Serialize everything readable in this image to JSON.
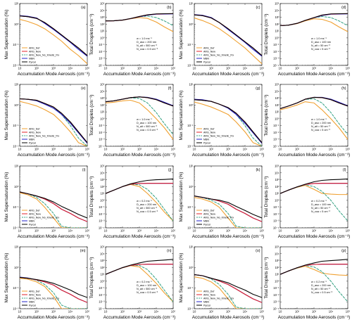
{
  "chart_data": {
    "type": "line",
    "layout": "4x4 grid of log-log panels",
    "x_axis": {
      "label": "Accumulation Mode Aerosols",
      "unit": "(cm⁻³)",
      "scale": "log",
      "xlim": [
        10,
        100000
      ],
      "ticks": [
        "10",
        "10²",
        "10³",
        "10⁴",
        "10⁵"
      ]
    },
    "y_smax": {
      "label": "Max Supersaturation",
      "unit": "(%)",
      "scale": "log",
      "ylim": [
        0.01,
        10
      ],
      "ticks": [
        "10⁻²",
        "10⁻¹",
        "10⁰",
        "10¹"
      ]
    },
    "y_nd": {
      "label": "Total Droplets",
      "unit": "(cm⁻³)",
      "scale": "log",
      "ylim": [
        0.0001,
        100000
      ],
      "ticks": [
        "10⁻⁴",
        "10⁻³",
        "10⁻²",
        "10⁻¹",
        "10⁰",
        "10¹",
        "10²",
        "10³",
        "10⁴",
        "10⁵"
      ]
    },
    "legend": [
      {
        "name": "ARG_Def",
        "color": "#f0a030",
        "dash": "solid"
      },
      {
        "name": "ARG_New",
        "color": "#e0202a",
        "dash": "solid"
      },
      {
        "name": "ARG_New_No_Kinetic_Fix",
        "color": "#30a080",
        "dash": "dashed"
      },
      {
        "name": "MBN",
        "color": "#2020c8",
        "dash": "solid"
      },
      {
        "name": "Pyrcel",
        "color": "#000000",
        "dash": "solid"
      }
    ],
    "x": [
      10,
      30,
      100,
      300,
      1000,
      3000,
      10000,
      30000,
      100000
    ],
    "panels": [
      {
        "label": "(a)",
        "kind": "smax",
        "series": {
          "ARG_Def": [
            1.7,
            1.35,
            0.95,
            0.6,
            0.3,
            0.15,
            0.06,
            0.03,
            0.012
          ],
          "ARG_New": [
            2.5,
            2.3,
            1.9,
            1.2,
            0.6,
            0.3,
            0.14,
            0.07,
            0.03
          ],
          "ARG_New_No_Kinetic_Fix": [
            2.5,
            2.3,
            1.9,
            1.2,
            0.6,
            0.3,
            0.14,
            0.07,
            0.03
          ],
          "MBN": [
            2.6,
            2.4,
            2.0,
            1.1,
            0.55,
            0.28,
            0.13,
            0.06,
            0.028
          ],
          "Pyrcel": [
            2.5,
            2.3,
            1.9,
            1.2,
            0.6,
            0.3,
            0.14,
            0.07,
            0.03
          ]
        }
      },
      {
        "label": "(b)",
        "kind": "nd",
        "annotation": [
          "w = 1.0 ms⁻¹",
          "D_aso = 200 nm",
          "N_ait = 500 cm⁻³",
          "N_coa = 0.5 cm⁻³"
        ],
        "series": {
          "ARG_Def": [
            300,
            310,
            380,
            600,
            900,
            700,
            200,
            40,
            8
          ],
          "ARG_New": [
            300,
            310,
            390,
            650,
            1300,
            2200,
            3000,
            3200,
            3300
          ],
          "ARG_New_No_Kinetic_Fix": [
            300,
            310,
            390,
            650,
            1200,
            1500,
            900,
            300,
            60
          ],
          "MBN": [
            300,
            310,
            390,
            640,
            1200,
            2000,
            2800,
            3000,
            3100
          ],
          "Pyrcel": [
            300,
            310,
            390,
            650,
            1300,
            2300,
            3100,
            3300,
            3400
          ]
        }
      },
      {
        "label": "(c)",
        "kind": "smax",
        "series": {
          "ARG_Def": [
            2.0,
            1.5,
            1.0,
            0.6,
            0.3,
            0.15,
            0.07,
            0.03,
            0.012
          ],
          "ARG_New": [
            2.8,
            2.6,
            2.0,
            1.2,
            0.6,
            0.3,
            0.14,
            0.07,
            0.03
          ],
          "ARG_New_No_Kinetic_Fix": [
            2.8,
            2.6,
            2.0,
            1.2,
            0.6,
            0.3,
            0.14,
            0.07,
            0.03
          ],
          "MBN": [
            2.9,
            2.7,
            2.1,
            1.2,
            0.55,
            0.28,
            0.13,
            0.06,
            0.028
          ],
          "Pyrcel": [
            2.8,
            2.6,
            2.0,
            1.2,
            0.6,
            0.3,
            0.14,
            0.07,
            0.03
          ]
        }
      },
      {
        "label": "(d)",
        "kind": "nd",
        "annotation": [
          "w = 1.0 ms⁻¹",
          "D_aso = 100 nm",
          "N_ait = 50 cm⁻³",
          "N_coa = 5 cm⁻³"
        ],
        "series": {
          "ARG_Def": [
            60,
            70,
            120,
            300,
            600,
            500,
            200,
            40,
            8
          ],
          "ARG_New": [
            60,
            70,
            130,
            350,
            900,
            2000,
            3000,
            3200,
            3300
          ],
          "ARG_New_No_Kinetic_Fix": [
            60,
            70,
            130,
            350,
            850,
            1300,
            900,
            300,
            60
          ],
          "MBN": [
            60,
            70,
            130,
            340,
            850,
            1800,
            2800,
            3000,
            3100
          ],
          "Pyrcel": [
            60,
            70,
            130,
            350,
            900,
            2100,
            3100,
            3300,
            3400
          ]
        }
      },
      {
        "label": "(e)",
        "kind": "smax",
        "series": {
          "ARG_Def": [
            1.5,
            1.2,
            0.9,
            0.6,
            0.35,
            0.15,
            0.05,
            0.015,
            0.003
          ],
          "ARG_New": [
            2.0,
            1.9,
            1.7,
            1.2,
            0.8,
            0.4,
            0.15,
            0.05,
            0.015
          ],
          "ARG_New_No_Kinetic_Fix": [
            2.0,
            1.9,
            1.7,
            1.2,
            0.8,
            0.35,
            0.1,
            0.025,
            0.006
          ],
          "MBN": [
            2.0,
            1.9,
            1.6,
            1.1,
            0.7,
            0.35,
            0.13,
            0.045,
            0.014
          ],
          "Pyrcel": [
            2.0,
            1.9,
            1.7,
            1.2,
            0.8,
            0.4,
            0.15,
            0.05,
            0.015
          ]
        }
      },
      {
        "label": "(f)",
        "kind": "nd",
        "annotation": [
          "w = 1.0 ms⁻¹",
          "D_aso = 100 nm",
          "N_ait = 500 cm⁻³",
          "N_coa = 0.5 cm⁻³"
        ],
        "series": {
          "ARG_Def": [
            200,
            250,
            400,
            500,
            200,
            20,
            1,
            0.05,
            0.001
          ],
          "ARG_New": [
            300,
            400,
            700,
            1200,
            1500,
            1200,
            600,
            200,
            70
          ],
          "ARG_New_No_Kinetic_Fix": [
            300,
            400,
            700,
            1100,
            900,
            200,
            8,
            0.2,
            0.005
          ],
          "MBN": [
            300,
            400,
            700,
            1200,
            1500,
            1300,
            700,
            250,
            80
          ],
          "Pyrcel": [
            300,
            400,
            700,
            1200,
            1500,
            1200,
            600,
            200,
            70
          ]
        }
      },
      {
        "label": "(g)",
        "kind": "smax",
        "series": {
          "ARG_Def": [
            1.4,
            1.1,
            0.8,
            0.55,
            0.35,
            0.15,
            0.05,
            0.015,
            0.003
          ],
          "ARG_New": [
            1.8,
            1.7,
            1.5,
            1.1,
            0.75,
            0.4,
            0.15,
            0.05,
            0.015
          ],
          "ARG_New_No_Kinetic_Fix": [
            1.8,
            1.7,
            1.5,
            1.1,
            0.75,
            0.35,
            0.1,
            0.025,
            0.006
          ],
          "MBN": [
            1.9,
            1.8,
            1.5,
            1.1,
            0.7,
            0.35,
            0.13,
            0.045,
            0.014
          ],
          "Pyrcel": [
            1.8,
            1.7,
            1.5,
            1.1,
            0.75,
            0.4,
            0.15,
            0.05,
            0.015
          ]
        }
      },
      {
        "label": "(h)",
        "kind": "nd",
        "annotation": [
          "w = 1.0 ms⁻¹",
          "D_aso = 200 nm",
          "N_ait = 50 cm⁻³",
          "N_coa = 5 cm⁻³"
        ],
        "series": {
          "ARG_Def": [
            20,
            40,
            100,
            300,
            200,
            20,
            1,
            0.05,
            0.001
          ],
          "ARG_New": [
            30,
            70,
            200,
            700,
            1300,
            1200,
            600,
            200,
            70
          ],
          "ARG_New_No_Kinetic_Fix": [
            30,
            70,
            200,
            650,
            800,
            200,
            8,
            0.2,
            0.005
          ],
          "MBN": [
            30,
            70,
            200,
            700,
            1300,
            1300,
            700,
            250,
            80
          ],
          "Pyrcel": [
            30,
            70,
            200,
            700,
            1300,
            1200,
            600,
            200,
            70
          ]
        }
      },
      {
        "label": "(i)",
        "kind": "smax",
        "series": {
          "ARG_Def": [
            0.5,
            0.4,
            0.25,
            0.1,
            0.03,
            0.008,
            0.002,
            0.0008,
            0.0003
          ],
          "ARG_New": [
            0.55,
            0.45,
            0.35,
            0.25,
            0.15,
            0.08,
            0.05,
            0.03,
            0.02
          ],
          "ARG_New_No_Kinetic_Fix": [
            0.55,
            0.45,
            0.3,
            0.15,
            0.05,
            0.012,
            0.003,
            0.001,
            0.0004
          ],
          "MBN": [
            0.55,
            0.45,
            0.35,
            0.25,
            0.15,
            0.08,
            0.05,
            0.03,
            0.02
          ],
          "Pyrcel": [
            0.55,
            0.45,
            0.35,
            0.27,
            0.18,
            0.11,
            0.07,
            0.045,
            0.03
          ]
        }
      },
      {
        "label": "(j)",
        "kind": "nd",
        "annotation": [
          "w = 0.2 ms⁻¹",
          "D_aso = 200 nm",
          "N_ait = 500 cm⁻³",
          "N_coa = 0.5 cm⁻³"
        ],
        "series": {
          "ARG_Def": [
            10,
            30,
            100,
            200,
            100,
            10,
            0.5,
            0.02,
            0.001
          ],
          "ARG_New": [
            10,
            30,
            100,
            230,
            280,
            300,
            300,
            300,
            300
          ],
          "ARG_New_No_Kinetic_Fix": [
            10,
            30,
            100,
            220,
            180,
            40,
            2,
            0.05,
            0.001
          ],
          "MBN": [
            10,
            30,
            100,
            230,
            280,
            300,
            300,
            300,
            300
          ],
          "Pyrcel": [
            10,
            30,
            100,
            250,
            500,
            800,
            1000,
            1100,
            1300
          ]
        }
      },
      {
        "label": "(k)",
        "kind": "smax",
        "series": {
          "ARG_Def": [
            0.3,
            0.25,
            0.18,
            0.1,
            0.03,
            0.008,
            0.002,
            0.0008,
            0.0003
          ],
          "ARG_New": [
            0.35,
            0.3,
            0.25,
            0.2,
            0.14,
            0.08,
            0.05,
            0.03,
            0.02
          ],
          "ARG_New_No_Kinetic_Fix": [
            0.35,
            0.3,
            0.22,
            0.14,
            0.05,
            0.012,
            0.003,
            0.001,
            0.0004
          ],
          "MBN": [
            0.35,
            0.3,
            0.25,
            0.2,
            0.14,
            0.08,
            0.05,
            0.03,
            0.02
          ],
          "Pyrcel": [
            0.35,
            0.3,
            0.25,
            0.22,
            0.17,
            0.11,
            0.07,
            0.045,
            0.03
          ]
        }
      },
      {
        "label": "(l)",
        "kind": "nd",
        "annotation": [
          "w = 0.2 ms⁻¹",
          "D_aso = 100 nm",
          "N_ait = 50 cm⁻³",
          "N_coa = 5 cm⁻³"
        ],
        "series": {
          "ARG_Def": [
            10,
            30,
            80,
            150,
            40,
            10,
            8,
            7,
            7
          ],
          "ARG_New": [
            10,
            30,
            90,
            200,
            280,
            300,
            300,
            300,
            300
          ],
          "ARG_New_No_Kinetic_Fix": [
            10,
            30,
            85,
            180,
            100,
            20,
            1,
            0.03,
            0.001
          ],
          "MBN": [
            10,
            30,
            90,
            200,
            280,
            300,
            300,
            300,
            300
          ],
          "Pyrcel": [
            10,
            30,
            90,
            220,
            500,
            800,
            1000,
            1100,
            1300
          ]
        }
      },
      {
        "label": "(m)",
        "kind": "smax",
        "series": {
          "ARG_Def": [
            0.3,
            0.27,
            0.2,
            0.12,
            0.04,
            0.01,
            0.002,
            0.0008,
            0.0003
          ],
          "ARG_New": [
            0.33,
            0.3,
            0.25,
            0.2,
            0.14,
            0.08,
            0.05,
            0.03,
            0.02
          ],
          "ARG_New_No_Kinetic_Fix": [
            0.33,
            0.3,
            0.24,
            0.15,
            0.06,
            0.015,
            0.004,
            0.001,
            0.0004
          ],
          "MBN": [
            0.34,
            0.31,
            0.25,
            0.2,
            0.14,
            0.08,
            0.05,
            0.03,
            0.02
          ],
          "Pyrcel": [
            0.33,
            0.3,
            0.26,
            0.22,
            0.17,
            0.12,
            0.08,
            0.05,
            0.035
          ]
        }
      },
      {
        "label": "(n)",
        "kind": "nd",
        "annotation": [
          "w = 0.2 ms⁻¹",
          "D_aso = 100 nm",
          "N_ait = 500 cm⁻³",
          "N_coa = 0.5 cm⁻³"
        ],
        "series": {
          "ARG_Def": [
            10,
            30,
            90,
            180,
            120,
            10,
            0.5,
            0.02,
            0.001
          ],
          "ARG_New": [
            10,
            30,
            95,
            200,
            270,
            300,
            300,
            300,
            300
          ],
          "ARG_New_No_Kinetic_Fix": [
            10,
            30,
            95,
            200,
            200,
            50,
            2,
            0.05,
            0.001
          ],
          "MBN": [
            10,
            30,
            95,
            200,
            270,
            300,
            300,
            300,
            300
          ],
          "Pyrcel": [
            10,
            30,
            95,
            220,
            450,
            800,
            1000,
            1200,
            1500
          ]
        }
      },
      {
        "label": "(o)",
        "kind": "smax",
        "series": {
          "ARG_Def": [
            0.35,
            0.3,
            0.2,
            0.1,
            0.03,
            0.008,
            0.002,
            0.0008,
            0.0003
          ],
          "ARG_New": [
            0.45,
            0.4,
            0.3,
            0.22,
            0.15,
            0.09,
            0.05,
            0.03,
            0.02
          ],
          "ARG_New_No_Kinetic_Fix": [
            0.45,
            0.4,
            0.28,
            0.15,
            0.05,
            0.012,
            0.003,
            0.001,
            0.0004
          ],
          "MBN": [
            0.45,
            0.4,
            0.3,
            0.22,
            0.15,
            0.09,
            0.05,
            0.03,
            0.02
          ],
          "Pyrcel": [
            0.45,
            0.4,
            0.3,
            0.24,
            0.18,
            0.12,
            0.08,
            0.05,
            0.035
          ]
        }
      },
      {
        "label": "(p)",
        "kind": "nd",
        "annotation": [
          "w = 0.2 ms⁻¹",
          "D_aso = 200 nm",
          "N_ait = 50 cm⁻³",
          "N_coa = 0.5 cm⁻³"
        ],
        "series": {
          "ARG_Def": [
            10,
            30,
            80,
            150,
            50,
            15,
            10,
            8,
            7
          ],
          "ARG_New": [
            10,
            30,
            90,
            200,
            270,
            300,
            300,
            300,
            300
          ],
          "ARG_New_No_Kinetic_Fix": [
            10,
            30,
            85,
            190,
            120,
            25,
            1,
            0.03,
            0.001
          ],
          "MBN": [
            10,
            30,
            90,
            200,
            270,
            300,
            300,
            300,
            300
          ],
          "Pyrcel": [
            10,
            30,
            90,
            220,
            450,
            800,
            1000,
            1200,
            1500
          ]
        }
      }
    ]
  }
}
